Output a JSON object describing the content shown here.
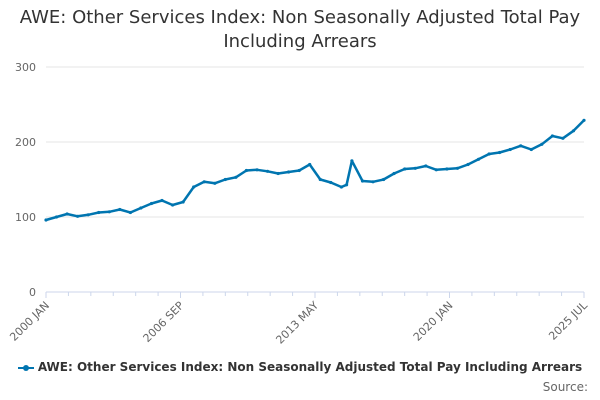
{
  "title": "AWE: Other Services Index: Non Seasonally Adjusted Total Pay Including Arrears",
  "source_label": "Source:",
  "colors": {
    "series": "#0075b0",
    "grid": "#e6e6e6",
    "axis": "#ccd6eb"
  },
  "chart_data": {
    "type": "line",
    "title": "AWE: Other Services Index: Non Seasonally Adjusted Total Pay Including Arrears",
    "xlabel": "",
    "ylabel": "",
    "ylim": [
      0,
      300
    ],
    "yticks": [
      0,
      100,
      200,
      300
    ],
    "xticks": [
      "2000 JAN",
      "2006 SEP",
      "2013 MAY",
      "2020 JAN",
      "2025 JUL"
    ],
    "x_range": [
      "2000-01",
      "2025-07"
    ],
    "grid": true,
    "legend_position": "bottom",
    "series": [
      {
        "name": "AWE: Other Services Index: Non Seasonally Adjusted Total Pay Including Arrears",
        "x": [
          "2000-01",
          "2000-07",
          "2001-01",
          "2001-07",
          "2002-01",
          "2002-07",
          "2003-01",
          "2003-07",
          "2004-01",
          "2004-07",
          "2005-01",
          "2005-07",
          "2006-01",
          "2006-07",
          "2007-01",
          "2007-07",
          "2008-01",
          "2008-07",
          "2009-01",
          "2009-07",
          "2010-01",
          "2010-07",
          "2011-01",
          "2011-07",
          "2012-01",
          "2012-07",
          "2013-01",
          "2013-07",
          "2014-01",
          "2014-04",
          "2014-07",
          "2015-01",
          "2015-07",
          "2016-01",
          "2016-07",
          "2017-01",
          "2017-07",
          "2018-01",
          "2018-07",
          "2019-01",
          "2019-07",
          "2020-01",
          "2020-07",
          "2021-01",
          "2021-07",
          "2022-01",
          "2022-07",
          "2023-01",
          "2023-07",
          "2024-01",
          "2024-07",
          "2025-01",
          "2025-07"
        ],
        "values": [
          96,
          100,
          104,
          101,
          103,
          106,
          107,
          110,
          106,
          112,
          118,
          122,
          116,
          120,
          140,
          147,
          145,
          150,
          153,
          162,
          163,
          161,
          158,
          160,
          162,
          170,
          150,
          146,
          140,
          143,
          175,
          148,
          147,
          150,
          158,
          164,
          165,
          168,
          163,
          164,
          165,
          170,
          177,
          184,
          186,
          190,
          195,
          190,
          197,
          208,
          205,
          215,
          229
        ]
      }
    ]
  }
}
